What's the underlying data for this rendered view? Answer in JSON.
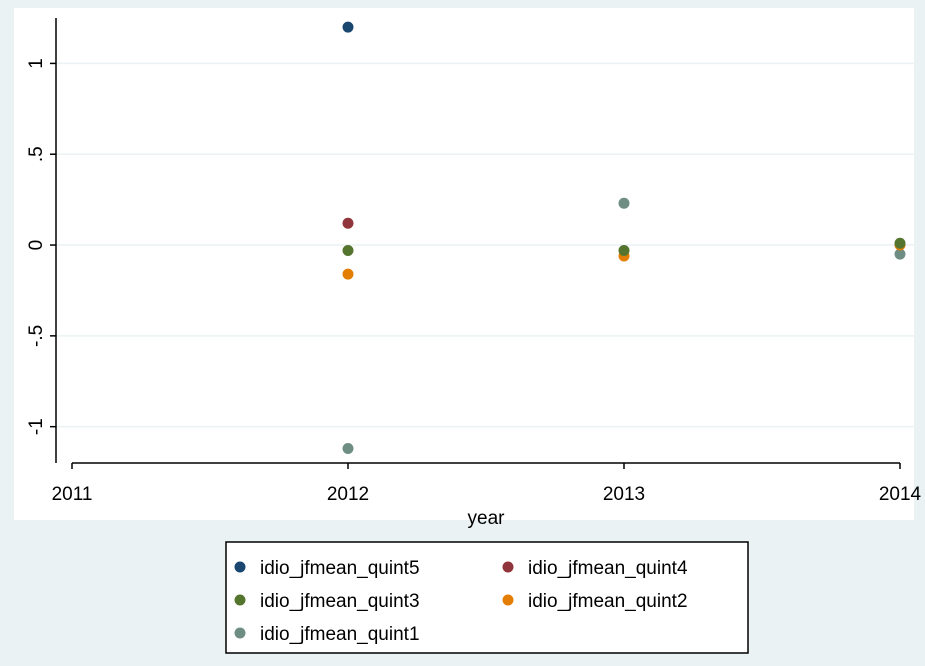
{
  "chart_data": {
    "type": "scatter",
    "title": "",
    "xlabel": "year",
    "ylabel": "",
    "xlim": [
      2011,
      2014
    ],
    "ylim": [
      -1.2,
      1.25
    ],
    "x_ticks": [
      2011,
      2012,
      2013,
      2014
    ],
    "x_tick_labels": [
      "2011",
      "2012",
      "2013",
      "2014"
    ],
    "y_ticks": [
      -1,
      -0.5,
      0,
      0.5,
      1
    ],
    "y_tick_labels": [
      "-1",
      "-.5",
      "0",
      ".5",
      "1"
    ],
    "grid": true,
    "legend_position": "bottom",
    "series": [
      {
        "name": "idio_jfmean_quint5",
        "color": "#1a476f",
        "x": [
          2012
        ],
        "y": [
          1.2
        ]
      },
      {
        "name": "idio_jfmean_quint4",
        "color": "#90353b",
        "x": [
          2012
        ],
        "y": [
          0.12
        ]
      },
      {
        "name": "idio_jfmean_quint3",
        "color": "#55752f",
        "x": [
          2012,
          2013,
          2014
        ],
        "y": [
          -0.03,
          -0.03,
          0.01
        ]
      },
      {
        "name": "idio_jfmean_quint2",
        "color": "#e37e00",
        "x": [
          2012,
          2013,
          2014
        ],
        "y": [
          -0.16,
          -0.06,
          0.0
        ]
      },
      {
        "name": "idio_jfmean_quint1",
        "color": "#6e8e84",
        "x": [
          2012,
          2013,
          2014
        ],
        "y": [
          -1.12,
          0.23,
          -0.05
        ]
      }
    ]
  }
}
